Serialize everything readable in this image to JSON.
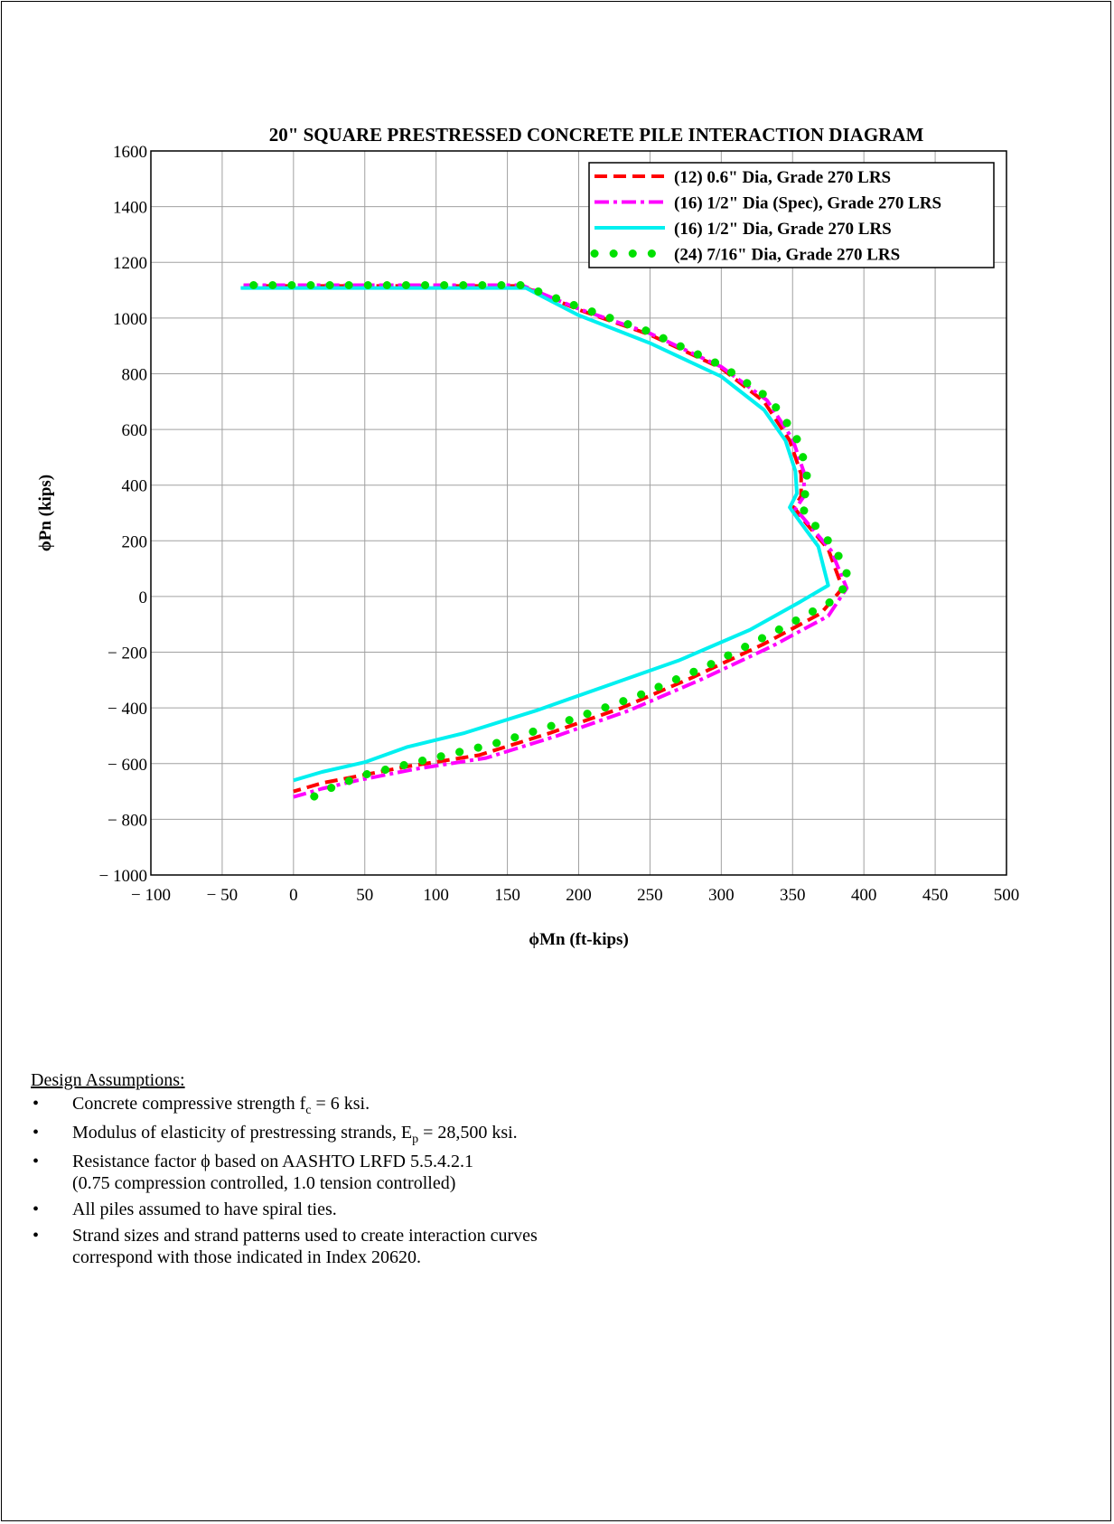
{
  "chart_data": {
    "type": "line",
    "title": "20\" SQUARE PRESTRESSED CONCRETE PILE INTERACTION DIAGRAM",
    "xlabel": "ϕMn (ft-kips)",
    "ylabel": "ϕPn (kips)",
    "xlim": [
      -100,
      500
    ],
    "ylim": [
      -1000,
      1600
    ],
    "xticks": [
      -100,
      -50,
      0,
      50,
      100,
      150,
      200,
      250,
      300,
      350,
      400,
      450,
      500
    ],
    "yticks": [
      -1000,
      -800,
      -600,
      -400,
      -200,
      0,
      200,
      400,
      600,
      800,
      1000,
      1200,
      1400,
      1600
    ],
    "grid": true,
    "legend_position": "top-right",
    "series": [
      {
        "name": "(12) 0.6\" Dia, Grade 270 LRS",
        "color": "#ff0000",
        "style": "dashed",
        "x": [
          -35,
          160,
          200,
          250,
          300,
          330,
          348,
          356,
          356,
          351,
          360,
          375,
          385,
          370,
          330,
          280,
          230,
          180,
          130,
          80,
          40,
          20,
          0
        ],
        "y": [
          1115,
          1115,
          1030,
          940,
          820,
          700,
          560,
          440,
          360,
          320,
          260,
          170,
          30,
          -60,
          -170,
          -290,
          -400,
          -490,
          -570,
          -610,
          -650,
          -670,
          -700
        ]
      },
      {
        "name": "(16) 1/2\" Dia (Spec), Grade 270 LRS",
        "color": "#ff00ff",
        "style": "dash-dot",
        "x": [
          -35,
          160,
          200,
          250,
          300,
          332,
          350,
          358,
          358,
          352,
          362,
          377,
          388,
          375,
          335,
          285,
          235,
          185,
          135,
          85,
          45,
          20,
          0
        ],
        "y": [
          1118,
          1118,
          1033,
          945,
          825,
          705,
          565,
          445,
          360,
          315,
          255,
          165,
          30,
          -70,
          -180,
          -300,
          -410,
          -500,
          -580,
          -620,
          -660,
          -690,
          -720
        ]
      },
      {
        "name": "(16) 1/2\" Dia, Grade 270 LRS",
        "color": "#00f0f0",
        "style": "solid",
        "x": [
          -37,
          163,
          200,
          250,
          300,
          330,
          345,
          352,
          353,
          348,
          355,
          368,
          375,
          355,
          320,
          270,
          220,
          170,
          120,
          80,
          50,
          20,
          0
        ],
        "y": [
          1108,
          1108,
          1010,
          910,
          790,
          670,
          560,
          450,
          370,
          320,
          270,
          180,
          40,
          -20,
          -120,
          -230,
          -320,
          -410,
          -490,
          -540,
          -595,
          -630,
          -660
        ]
      },
      {
        "name": "(24) 7/16\" Dia, Grade 270 LRS",
        "color": "#00e000",
        "style": "dotted",
        "x": [
          -28,
          160,
          200,
          250,
          300,
          334,
          352,
          360,
          360,
          355,
          365,
          380,
          390,
          380,
          340,
          290,
          240,
          190,
          140,
          90,
          50,
          25,
          10
        ],
        "y": [
          1118,
          1118,
          1040,
          950,
          830,
          710,
          580,
          460,
          380,
          330,
          260,
          170,
          60,
          -10,
          -120,
          -250,
          -360,
          -450,
          -530,
          -590,
          -640,
          -690,
          -730
        ]
      }
    ]
  },
  "assumptions": {
    "heading": "Design Assumptions:",
    "item1_pre": "Concrete compressive strength f",
    "item1_sub": "c",
    "item1_post": " = 6 ksi.",
    "item2_pre": "Modulus of elasticity of prestressing strands, E",
    "item2_sub": "p",
    "item2_post": " = 28,500 ksi.",
    "item3_line1": "Resistance factor ϕ based on AASHTO LRFD 5.5.4.2.1",
    "item3_line2": "(0.75 compression controlled, 1.0 tension controlled)",
    "item4": "All piles assumed to have spiral ties.",
    "item5_line1": "Strand sizes and strand patterns used to create interaction curves",
    "item5_line2": "correspond with those indicated in Index 20620."
  }
}
